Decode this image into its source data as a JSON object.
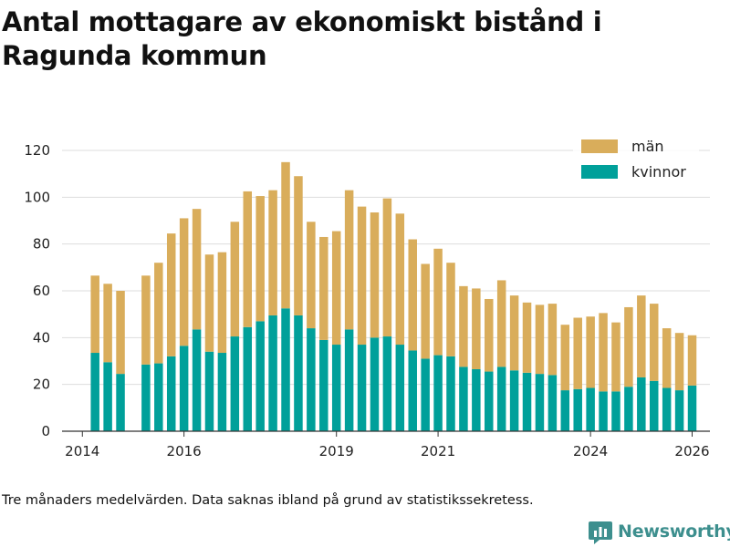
{
  "title": "Antal mottagare av ekonomiskt bistånd i Ragunda kommun",
  "note": "Tre månaders medelvärden. Data saknas ibland på grund av statistikssekretess.",
  "brand": "Newsworthy",
  "colors": {
    "kvinnor": "#00a09a",
    "man": "#d9ad5b",
    "grid": "#dddddd",
    "axis": "#333333",
    "brand": "#3d8f8e"
  },
  "chart_data": {
    "type": "bar",
    "stacked": true,
    "x_unit": "year",
    "xlim": [
      2013.6,
      2026.35
    ],
    "ylim": [
      0,
      120
    ],
    "yticks": [
      0,
      20,
      40,
      60,
      80,
      100,
      120
    ],
    "xticks": [
      2014,
      2016,
      2019,
      2021,
      2024,
      2026
    ],
    "legend": {
      "position": "top-right",
      "entries": [
        "män",
        "kvinnor"
      ]
    },
    "x": [
      2014.25,
      2014.5,
      2014.75,
      2015.25,
      2015.5,
      2015.75,
      2016.0,
      2016.25,
      2016.5,
      2016.75,
      2017.0,
      2017.25,
      2017.5,
      2017.75,
      2018.0,
      2018.25,
      2018.5,
      2018.75,
      2019.0,
      2019.25,
      2019.5,
      2019.75,
      2020.0,
      2020.25,
      2020.5,
      2020.75,
      2021.0,
      2021.25,
      2021.5,
      2021.75,
      2022.0,
      2022.25,
      2022.5,
      2022.75,
      2023.0,
      2023.25,
      2023.5,
      2023.75,
      2024.0,
      2024.25,
      2024.5,
      2024.75,
      2025.0,
      2025.25,
      2025.5,
      2025.75,
      2026.0
    ],
    "series": [
      {
        "name": "kvinnor",
        "values": [
          33.5,
          29.5,
          24.5,
          28.5,
          29,
          32,
          36.5,
          43.5,
          34,
          33.5,
          40.5,
          44.5,
          47,
          49.5,
          52.5,
          49.5,
          44,
          39,
          37,
          43.5,
          37,
          40,
          40.5,
          37,
          34.5,
          31,
          32.5,
          32,
          27.5,
          26.5,
          25.5,
          27.5,
          26,
          25,
          24.5,
          24,
          17.5,
          18,
          18.5,
          17,
          17,
          19,
          23,
          21.5,
          18.5,
          17.5,
          19.5
        ]
      },
      {
        "name": "män",
        "values": [
          33,
          33.5,
          35.5,
          38,
          43,
          52.5,
          54.5,
          51.5,
          41.5,
          43,
          49,
          58,
          53.5,
          53.5,
          62.5,
          59.5,
          45.5,
          44,
          48.5,
          59.5,
          59,
          53.5,
          59,
          56,
          47.5,
          40.5,
          45.5,
          40,
          34.5,
          34.5,
          31,
          37,
          32,
          30,
          29.5,
          30.5,
          28,
          30.5,
          30.5,
          33.5,
          29.5,
          34,
          35,
          33,
          25.5,
          24.5,
          21.5
        ]
      }
    ]
  }
}
